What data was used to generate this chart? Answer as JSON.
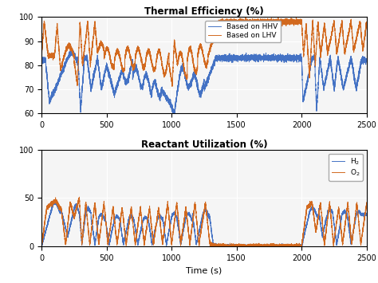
{
  "title1": "Thermal Efficiency (%)",
  "title2": "Reactant Utilization (%)",
  "xlabel": "Time (s)",
  "legend1": [
    "Based on HHV",
    "Based on LHV"
  ],
  "legend2_h2": "H$_2$",
  "legend2_o2": "O$_2$",
  "color_blue": "#4472C4",
  "color_orange": "#D2691E",
  "xlim": [
    0,
    2500
  ],
  "ylim1": [
    60,
    100
  ],
  "ylim2": [
    0,
    100
  ],
  "yticks1": [
    60,
    70,
    80,
    90,
    100
  ],
  "yticks2": [
    0,
    50,
    100
  ],
  "xticks": [
    0,
    500,
    1000,
    1500,
    2000,
    2500
  ],
  "bg_color": "#f5f5f5",
  "grid_color": "#ffffff"
}
